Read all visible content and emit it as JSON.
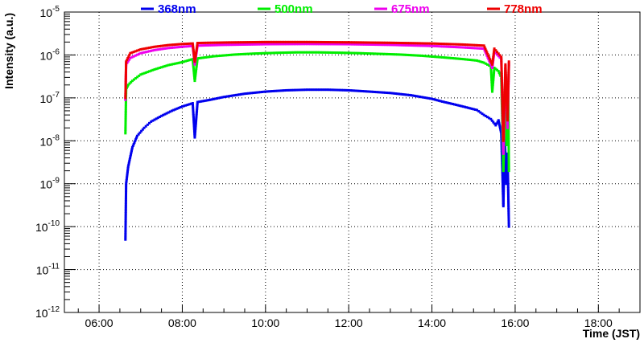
{
  "chart_data": {
    "type": "scatter",
    "title": "",
    "xlabel": "Time (JST)",
    "ylabel": "Intensity (a.u.)",
    "x_scale": "time",
    "y_scale": "log",
    "xlim": [
      "05:10",
      "19:00"
    ],
    "ylim": [
      1e-12,
      1e-05
    ],
    "grid": true,
    "legend_placement": "top",
    "x_ticks": [
      "06:00",
      "08:00",
      "10:00",
      "12:00",
      "14:00",
      "16:00",
      "18:00"
    ],
    "y_ticks": [
      {
        "base": "10",
        "exp": "-12",
        "value": 1e-12
      },
      {
        "base": "10",
        "exp": "-11",
        "value": 1e-11
      },
      {
        "base": "10",
        "exp": "-10",
        "value": 1e-10
      },
      {
        "base": "10",
        "exp": "-9",
        "value": 1e-09
      },
      {
        "base": "10",
        "exp": "-8",
        "value": 1e-08
      },
      {
        "base": "10",
        "exp": "-7",
        "value": 1e-07
      },
      {
        "base": "10",
        "exp": "-6",
        "value": 1e-06
      },
      {
        "base": "10",
        "exp": "-5",
        "value": 1e-05
      }
    ],
    "series": [
      {
        "name": "368nm",
        "color": "#0000ee",
        "points": [
          [
            "06:38",
            5e-11
          ],
          [
            "06:39",
            1e-09
          ],
          [
            "06:42",
            2.5e-09
          ],
          [
            "06:48",
            7e-09
          ],
          [
            "06:55",
            1.3e-08
          ],
          [
            "07:05",
            2e-08
          ],
          [
            "07:15",
            2.8e-08
          ],
          [
            "07:30",
            3.8e-08
          ],
          [
            "07:45",
            5e-08
          ],
          [
            "08:00",
            6.3e-08
          ],
          [
            "08:15",
            7.5e-08
          ],
          [
            "08:18",
            1.2e-08
          ],
          [
            "08:22",
            8e-08
          ],
          [
            "08:40",
            9e-08
          ],
          [
            "09:00",
            1.05e-07
          ],
          [
            "09:30",
            1.25e-07
          ],
          [
            "10:00",
            1.4e-07
          ],
          [
            "10:30",
            1.5e-07
          ],
          [
            "11:00",
            1.55e-07
          ],
          [
            "11:30",
            1.55e-07
          ],
          [
            "12:00",
            1.5e-07
          ],
          [
            "12:30",
            1.4e-07
          ],
          [
            "13:00",
            1.3e-07
          ],
          [
            "13:30",
            1.15e-07
          ],
          [
            "14:00",
            9.5e-08
          ],
          [
            "14:15",
            8.2e-08
          ],
          [
            "14:30",
            7.2e-08
          ],
          [
            "14:50",
            6e-08
          ],
          [
            "15:05",
            5.2e-08
          ],
          [
            "15:15",
            4e-08
          ],
          [
            "15:25",
            3.2e-08
          ],
          [
            "15:32",
            2.3e-08
          ],
          [
            "15:36",
            3e-08
          ],
          [
            "15:40",
            1.5e-08
          ],
          [
            "15:43",
            3e-10
          ],
          [
            "15:45",
            1.5e-08
          ],
          [
            "15:47",
            1e-09
          ],
          [
            "15:49",
            5e-09
          ],
          [
            "15:51",
            1e-10
          ]
        ]
      },
      {
        "name": "500nm",
        "color": "#00ee00",
        "points": [
          [
            "06:38",
            1.5e-08
          ],
          [
            "06:39",
            1.6e-07
          ],
          [
            "06:42",
            2e-07
          ],
          [
            "06:48",
            2.5e-07
          ],
          [
            "07:00",
            3.5e-07
          ],
          [
            "07:20",
            4.6e-07
          ],
          [
            "07:40",
            5.8e-07
          ],
          [
            "08:00",
            6.8e-07
          ],
          [
            "08:15",
            8e-07
          ],
          [
            "08:18",
            2.5e-07
          ],
          [
            "08:22",
            8.3e-07
          ],
          [
            "08:45",
            9.3e-07
          ],
          [
            "09:15",
            1.02e-06
          ],
          [
            "09:45",
            1.08e-06
          ],
          [
            "10:15",
            1.12e-06
          ],
          [
            "10:45",
            1.15e-06
          ],
          [
            "11:15",
            1.15e-06
          ],
          [
            "11:45",
            1.13e-06
          ],
          [
            "12:15",
            1.1e-06
          ],
          [
            "12:45",
            1.06e-06
          ],
          [
            "13:15",
            1.02e-06
          ],
          [
            "13:45",
            9.6e-07
          ],
          [
            "14:15",
            8.8e-07
          ],
          [
            "14:45",
            8e-07
          ],
          [
            "15:05",
            7.4e-07
          ],
          [
            "15:15",
            6.6e-07
          ],
          [
            "15:25",
            5.4e-07
          ],
          [
            "15:27",
            1.4e-07
          ],
          [
            "15:30",
            5e-07
          ],
          [
            "15:36",
            4.2e-07
          ],
          [
            "15:40",
            3e-07
          ],
          [
            "15:43",
            2e-09
          ],
          [
            "15:46",
            2e-07
          ],
          [
            "15:48",
            8e-09
          ],
          [
            "15:50",
            1.5e-07
          ],
          [
            "15:51",
            2e-09
          ]
        ]
      },
      {
        "name": "675nm",
        "color": "#ee00ee",
        "points": [
          [
            "06:38",
            9e-08
          ],
          [
            "06:39",
            6e-07
          ],
          [
            "06:45",
            8.5e-07
          ],
          [
            "07:00",
            1.1e-06
          ],
          [
            "07:20",
            1.3e-06
          ],
          [
            "07:40",
            1.45e-06
          ],
          [
            "08:00",
            1.55e-06
          ],
          [
            "08:15",
            1.62e-06
          ],
          [
            "08:18",
            6e-07
          ],
          [
            "08:22",
            1.65e-06
          ],
          [
            "09:00",
            1.72e-06
          ],
          [
            "10:00",
            1.78e-06
          ],
          [
            "11:00",
            1.8e-06
          ],
          [
            "12:00",
            1.78e-06
          ],
          [
            "13:00",
            1.72e-06
          ],
          [
            "14:00",
            1.62e-06
          ],
          [
            "14:45",
            1.5e-06
          ],
          [
            "15:15",
            1.4e-06
          ],
          [
            "15:27",
            5e-07
          ],
          [
            "15:30",
            1.2e-06
          ],
          [
            "15:40",
            8e-07
          ],
          [
            "15:43",
            5e-09
          ],
          [
            "15:46",
            5e-07
          ],
          [
            "15:49",
            2e-08
          ],
          [
            "15:51",
            6e-07
          ]
        ]
      },
      {
        "name": "778nm",
        "color": "#ee0000",
        "points": [
          [
            "06:38",
            1e-07
          ],
          [
            "06:39",
            7e-07
          ],
          [
            "06:45",
            1.1e-06
          ],
          [
            "07:00",
            1.35e-06
          ],
          [
            "07:20",
            1.55e-06
          ],
          [
            "07:40",
            1.7e-06
          ],
          [
            "08:00",
            1.8e-06
          ],
          [
            "08:15",
            1.85e-06
          ],
          [
            "08:18",
            7e-07
          ],
          [
            "08:22",
            1.9e-06
          ],
          [
            "09:00",
            1.95e-06
          ],
          [
            "10:00",
            2e-06
          ],
          [
            "11:00",
            2e-06
          ],
          [
            "12:00",
            1.97e-06
          ],
          [
            "13:00",
            1.92e-06
          ],
          [
            "14:00",
            1.85e-06
          ],
          [
            "14:45",
            1.75e-06
          ],
          [
            "15:15",
            1.65e-06
          ],
          [
            "15:27",
            6e-07
          ],
          [
            "15:30",
            1.4e-06
          ],
          [
            "15:40",
            9e-07
          ],
          [
            "15:43",
            1e-08
          ],
          [
            "15:46",
            6e-07
          ],
          [
            "15:49",
            3e-08
          ],
          [
            "15:51",
            7e-07
          ]
        ]
      }
    ]
  }
}
